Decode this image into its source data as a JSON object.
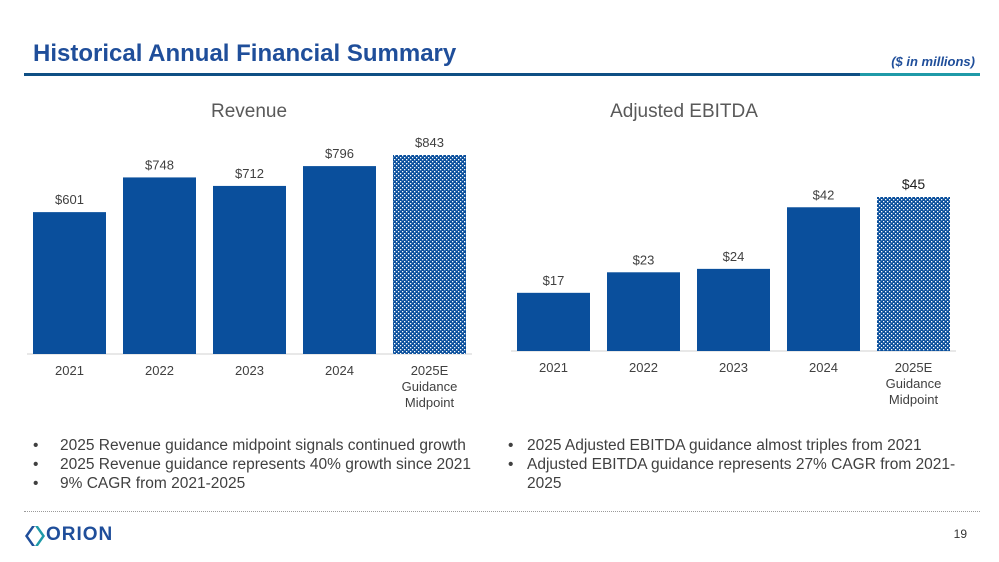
{
  "header": {
    "title": "Historical Annual Financial Summary",
    "units": "($ in millions)"
  },
  "colors": {
    "bar": "#0a4f9c",
    "title": "#1f4e9a",
    "accent": "#1f9aa8"
  },
  "chart_data": [
    {
      "type": "bar",
      "title": "Revenue",
      "categories": [
        "2021",
        "2022",
        "2023",
        "2024",
        "2025E Guidance Midpoint"
      ],
      "values": [
        601,
        748,
        712,
        796,
        843
      ],
      "labels": [
        "$601",
        "$748",
        "$712",
        "$796",
        "$843"
      ],
      "hatched": [
        false,
        false,
        false,
        false,
        true
      ],
      "ylim": [
        0,
        843
      ]
    },
    {
      "type": "bar",
      "title": "Adjusted EBITDA",
      "categories": [
        "2021",
        "2022",
        "2023",
        "2024",
        "2025E Guidance Midpoint"
      ],
      "values": [
        17,
        23,
        24,
        42,
        45
      ],
      "labels": [
        "$17",
        "$23",
        "$24",
        "$42",
        "$45"
      ],
      "hatched": [
        false,
        false,
        false,
        false,
        true
      ],
      "ylim": [
        0,
        45
      ]
    }
  ],
  "bullets_left": [
    "2025 Revenue guidance midpoint signals continued growth",
    "2025 Revenue guidance represents 40% growth since 2021",
    "9% CAGR from 2021-2025"
  ],
  "bullets_right": [
    "2025 Adjusted EBITDA guidance almost triples from 2021",
    "Adjusted EBITDA guidance represents 27% CAGR from 2021-2025"
  ],
  "footer": {
    "logo_text": "ORION",
    "page_number": "19"
  }
}
